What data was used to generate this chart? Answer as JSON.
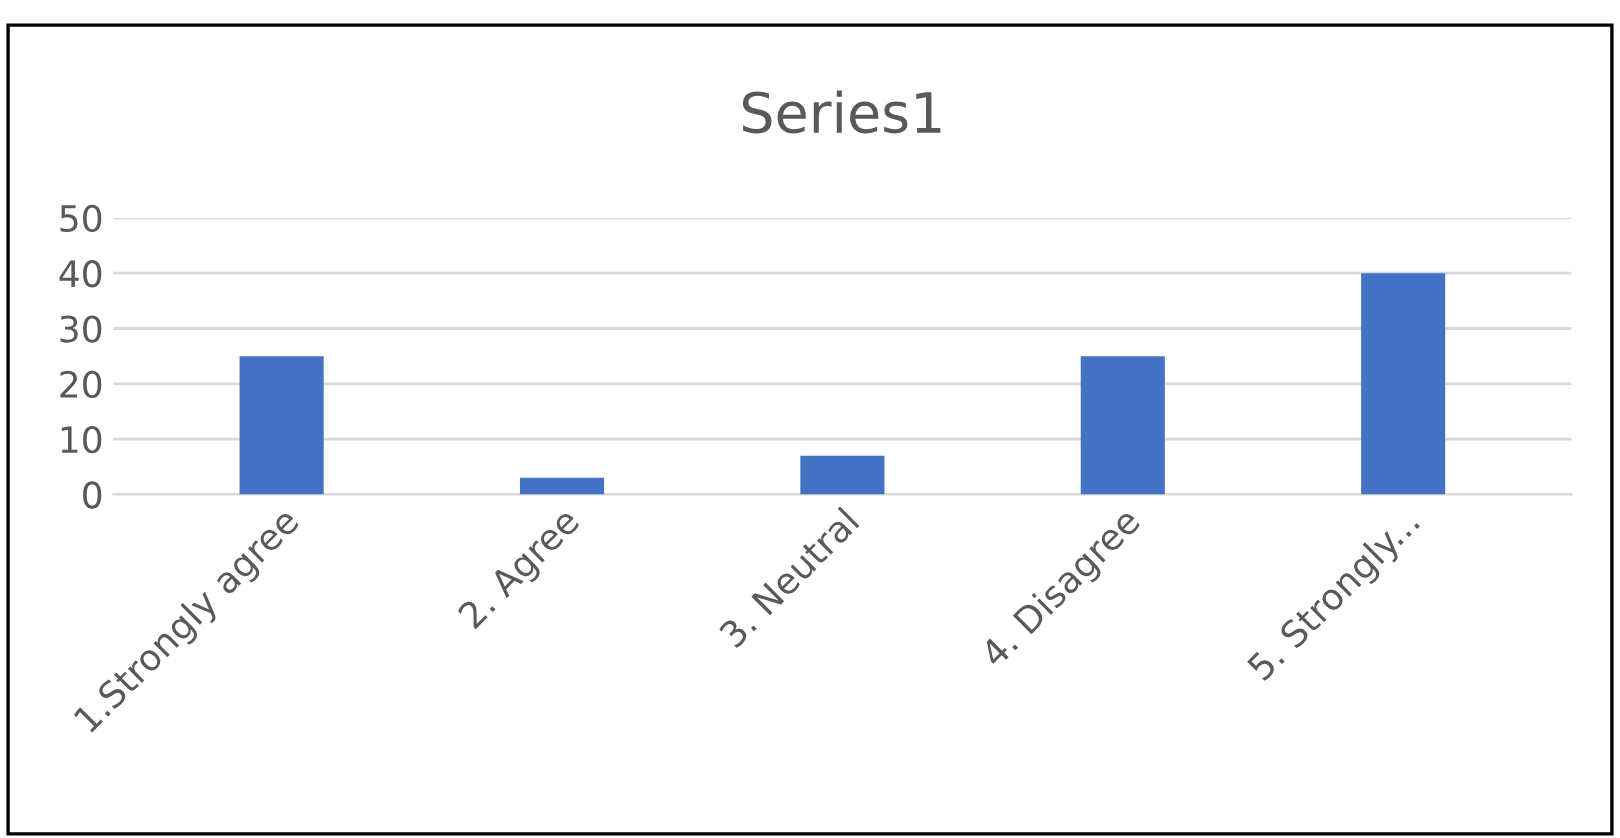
{
  "chart_data": {
    "type": "bar",
    "title": "Series1",
    "categories": [
      "1.Strongly agree",
      "2. Agree",
      "3. Neutral",
      "4. Disagree",
      "5. Strongly..."
    ],
    "values": [
      25,
      3,
      7,
      25,
      40
    ],
    "color": "#4472c4",
    "ylim": [
      0,
      50
    ],
    "yticks": [
      0,
      10,
      20,
      30,
      40,
      50
    ],
    "grid": "y"
  }
}
